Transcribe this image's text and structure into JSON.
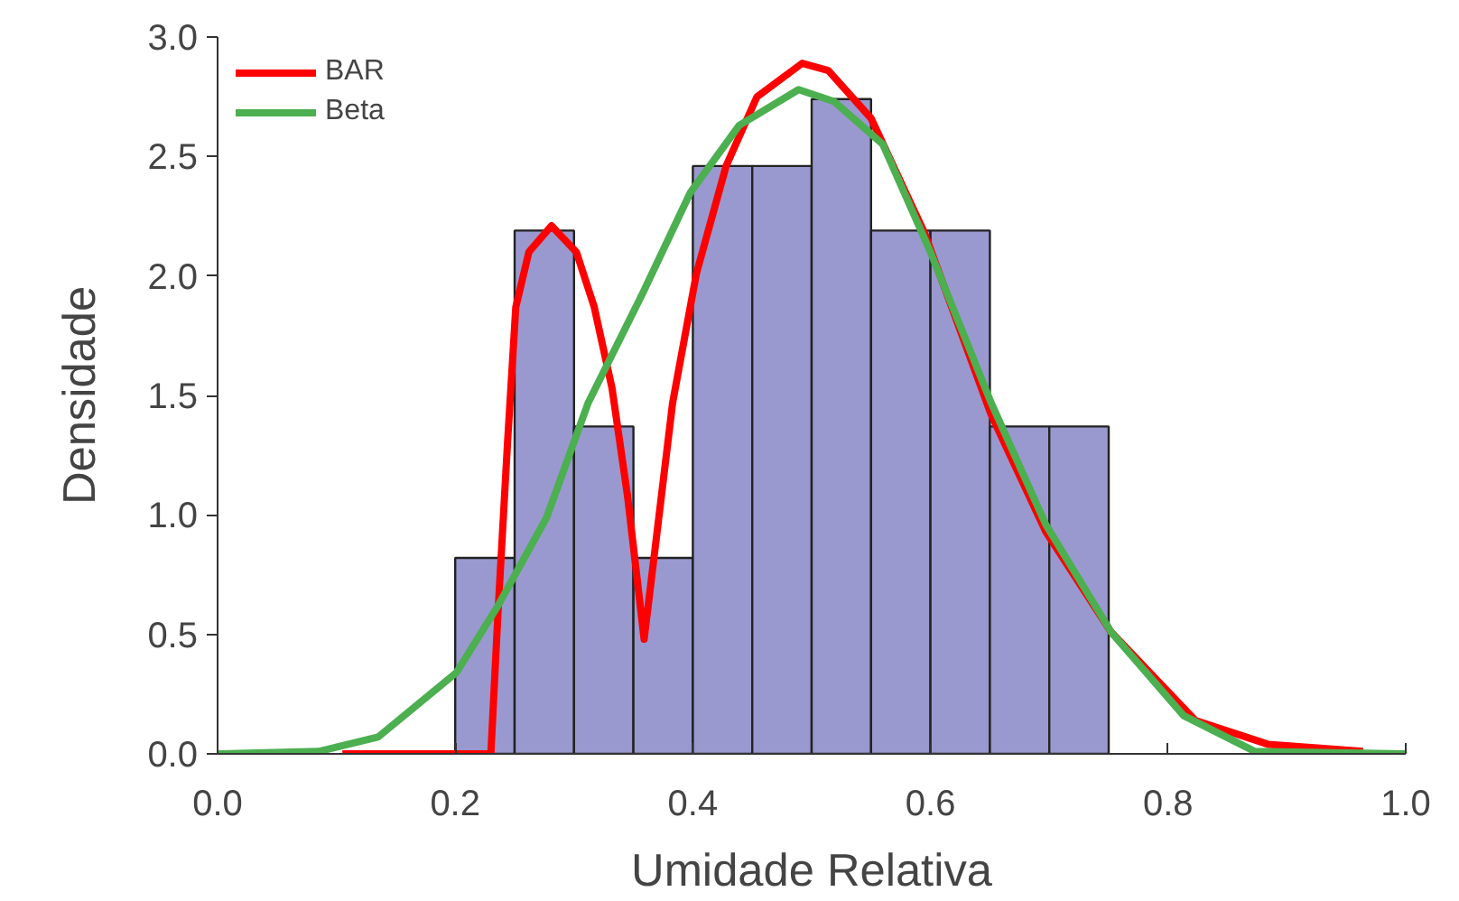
{
  "chart_data": {
    "type": "histogram",
    "xlabel": "Umidade Relativa",
    "ylabel": "Densidade",
    "bins": [
      0.2,
      0.25,
      0.3,
      0.35,
      0.4,
      0.45,
      0.5,
      0.55,
      0.6,
      0.65,
      0.7,
      0.75
    ],
    "values": [
      0.82,
      2.19,
      1.37,
      0.82,
      2.46,
      2.46,
      2.74,
      2.19,
      2.19,
      1.37,
      1.37
    ],
    "color": "#9999cf",
    "series": [
      {
        "name": "BAR",
        "type": "line",
        "color": "#ff0000",
        "x": [
          0.105,
          0.23,
          0.236,
          0.244,
          0.251,
          0.262,
          0.281,
          0.302,
          0.317,
          0.332,
          0.345,
          0.359,
          0.368,
          0.383,
          0.403,
          0.428,
          0.454,
          0.492,
          0.514,
          0.55,
          0.595,
          0.651,
          0.697,
          0.752,
          0.823,
          0.884,
          0.964
        ],
        "values": [
          0,
          0,
          0.59,
          1.3,
          1.87,
          2.1,
          2.21,
          2.1,
          1.87,
          1.53,
          1.08,
          0.48,
          0.85,
          1.47,
          2.01,
          2.46,
          2.75,
          2.89,
          2.86,
          2.66,
          2.18,
          1.42,
          0.93,
          0.51,
          0.14,
          0.04,
          0.01
        ]
      },
      {
        "name": "Beta",
        "type": "line",
        "color": "#4caf50",
        "x": [
          0,
          0.085,
          0.135,
          0.201,
          0.236,
          0.277,
          0.312,
          0.358,
          0.398,
          0.439,
          0.489,
          0.519,
          0.56,
          0.6,
          0.651,
          0.697,
          0.752,
          0.813,
          0.873,
          1.0
        ],
        "values": [
          0,
          0.01,
          0.07,
          0.34,
          0.62,
          0.99,
          1.47,
          1.93,
          2.35,
          2.63,
          2.78,
          2.73,
          2.55,
          2.1,
          1.47,
          0.96,
          0.51,
          0.16,
          0.01,
          0
        ]
      }
    ],
    "xlim": [
      0,
      1.0
    ],
    "ylim": [
      0,
      3.0
    ],
    "xticks": [
      {
        "value": 0,
        "label": "0.0"
      },
      0.2,
      0.4,
      0.6,
      0.8,
      {
        "value": 1,
        "label": "1.0"
      }
    ],
    "yticks": [
      {
        "value": 0,
        "label": "0.0"
      },
      0.5,
      {
        "value": 1,
        "label": "1.0"
      },
      1.5,
      {
        "value": 2,
        "label": "2.0"
      },
      2.5,
      {
        "value": 3,
        "label": "3.0"
      }
    ],
    "legend": "top left",
    "grid": false
  }
}
